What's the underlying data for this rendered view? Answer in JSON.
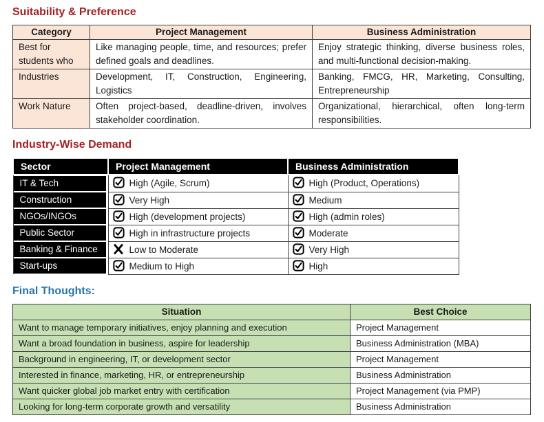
{
  "colors": {
    "title_red": "#a32124",
    "title_blue": "#2574b0",
    "peach": "#fbe5d6",
    "green": "#c6e0b4",
    "border_dark": "#3f3f3f",
    "table2_header_bg": "#000000",
    "table2_header_fg": "#ffffff"
  },
  "section1": {
    "title": "Suitability & Preference",
    "table": {
      "headers": [
        "Category",
        "Project Management",
        "Business Administration"
      ],
      "rows": [
        {
          "category": "Best for students who",
          "pm": "Like managing people, time, and resources; prefer defined goals and deadlines.",
          "ba": "Enjoy strategic thinking, diverse business roles, and multi-functional decision-making."
        },
        {
          "category": "Industries",
          "pm": "Development, IT, Construction, Engineering, Logistics",
          "ba": "Banking, FMCG, HR, Marketing, Consulting, Entrepreneurship"
        },
        {
          "category": "Work Nature",
          "pm": "Often project-based, deadline-driven, involves stakeholder coordination.",
          "ba": "Organizational, hierarchical, often long-term responsibilities."
        }
      ]
    }
  },
  "section2": {
    "title": "Industry-Wise Demand",
    "table": {
      "headers": [
        "Sector",
        "Project Management",
        "Business Administration"
      ],
      "rows": [
        {
          "sector": "IT & Tech",
          "pm": {
            "icon": "checkbox-checked",
            "text": "High (Agile, Scrum)"
          },
          "ba": {
            "icon": "checkbox-checked",
            "text": "High (Product, Operations)"
          }
        },
        {
          "sector": "Construction",
          "pm": {
            "icon": "checkbox-checked",
            "text": "Very High"
          },
          "ba": {
            "icon": "checkbox-checked",
            "text": "Medium"
          }
        },
        {
          "sector": "NGOs/INGOs",
          "pm": {
            "icon": "checkbox-checked",
            "text": "High (development projects)"
          },
          "ba": {
            "icon": "checkbox-checked",
            "text": "High (admin roles)"
          }
        },
        {
          "sector": "Public Sector",
          "pm": {
            "icon": "checkbox-checked",
            "text": "High in infrastructure projects"
          },
          "ba": {
            "icon": "checkbox-checked",
            "text": "Moderate"
          }
        },
        {
          "sector": "Banking & Finance",
          "pm": {
            "icon": "x-mark",
            "text": "Low to Moderate"
          },
          "ba": {
            "icon": "checkbox-checked",
            "text": "Very High"
          }
        },
        {
          "sector": "Start-ups",
          "pm": {
            "icon": "checkbox-checked",
            "text": "Medium to High"
          },
          "ba": {
            "icon": "checkbox-checked",
            "text": "High"
          }
        }
      ]
    }
  },
  "section3": {
    "title": "Final Thoughts:",
    "table": {
      "headers": [
        "Situation",
        "Best Choice"
      ],
      "rows": [
        {
          "situation": "Want to manage temporary initiatives, enjoy planning and execution",
          "choice": "Project Management"
        },
        {
          "situation": "Want a broad foundation in business, aspire for leadership",
          "choice": "Business Administration (MBA)"
        },
        {
          "situation": "Background in engineering, IT, or development sector",
          "choice": "Project Management"
        },
        {
          "situation": "Interested in finance, marketing, HR, or entrepreneurship",
          "choice": "Business Administration"
        },
        {
          "situation": "Want quicker global job market entry with certification",
          "choice": "Project Management (via PMP)"
        },
        {
          "situation": "Looking for long-term corporate growth and versatility",
          "choice": "Business Administration"
        }
      ]
    }
  }
}
